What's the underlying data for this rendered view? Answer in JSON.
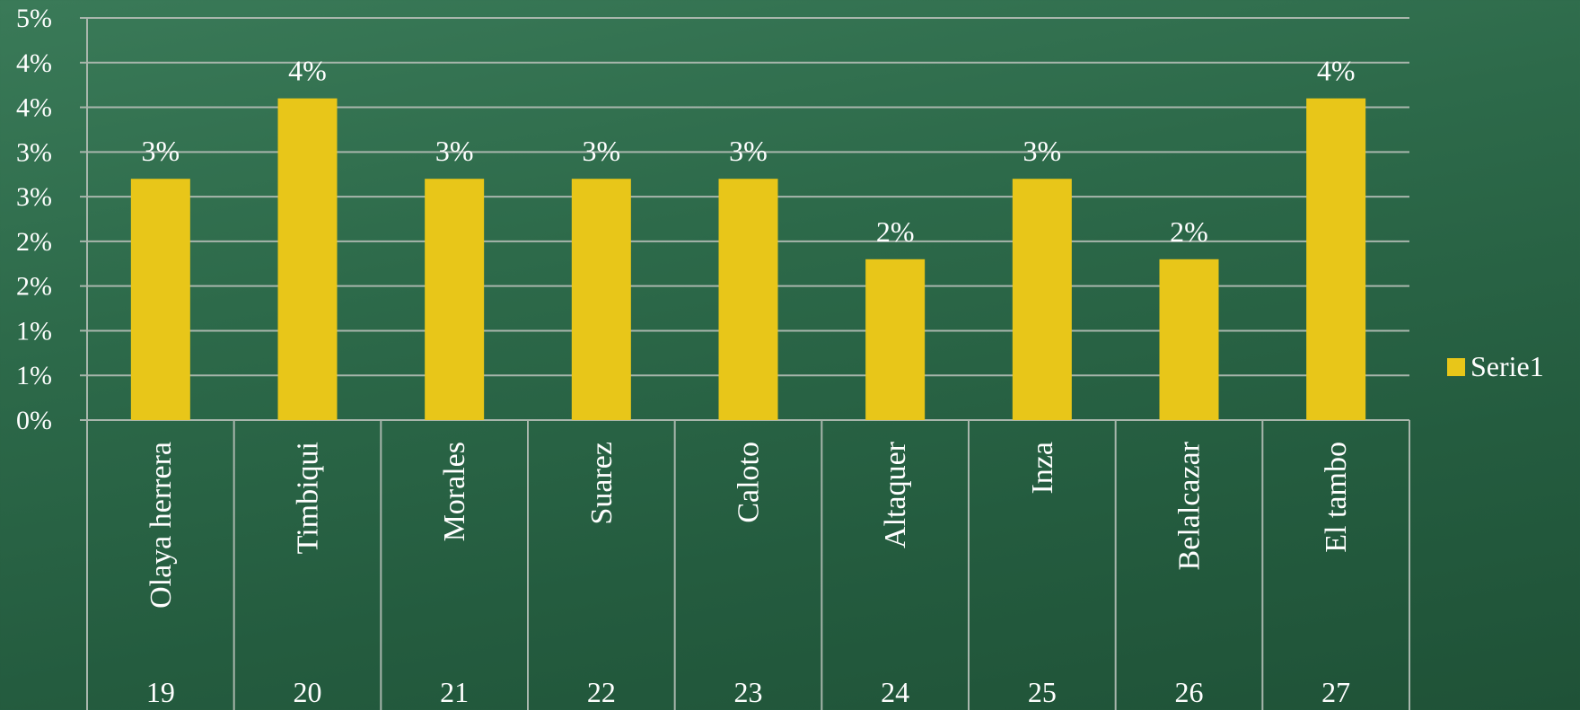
{
  "colors": {
    "bar": "#e8c619",
    "grid": "#a8b6ac",
    "text": "#ffffff"
  },
  "legend": {
    "label": "Serie1"
  },
  "chart_data": {
    "type": "bar",
    "title": "",
    "xlabel": "",
    "ylabel": "",
    "ylim": [
      0,
      5
    ],
    "y_ticks": [
      "0%",
      "1%",
      "1%",
      "2%",
      "2%",
      "3%",
      "3%",
      "4%",
      "4%",
      "5%"
    ],
    "grid": true,
    "legend_position": "right",
    "categories": [
      {
        "name": "Olaya herrera",
        "number": "19"
      },
      {
        "name": "Timbiqui",
        "number": "20"
      },
      {
        "name": "Morales",
        "number": "21"
      },
      {
        "name": "Suarez",
        "number": "22"
      },
      {
        "name": "Caloto",
        "number": "23"
      },
      {
        "name": "Altaquer",
        "number": "24"
      },
      {
        "name": "Inza",
        "number": "25"
      },
      {
        "name": "Belalcazar",
        "number": "26"
      },
      {
        "name": "El tambo",
        "number": "27"
      }
    ],
    "series": [
      {
        "name": "Serie1",
        "values": [
          3,
          4,
          3,
          3,
          3,
          2,
          3,
          2,
          4
        ],
        "labels": [
          "3%",
          "4%",
          "3%",
          "3%",
          "3%",
          "2%",
          "3%",
          "2%",
          "4%"
        ]
      }
    ]
  }
}
